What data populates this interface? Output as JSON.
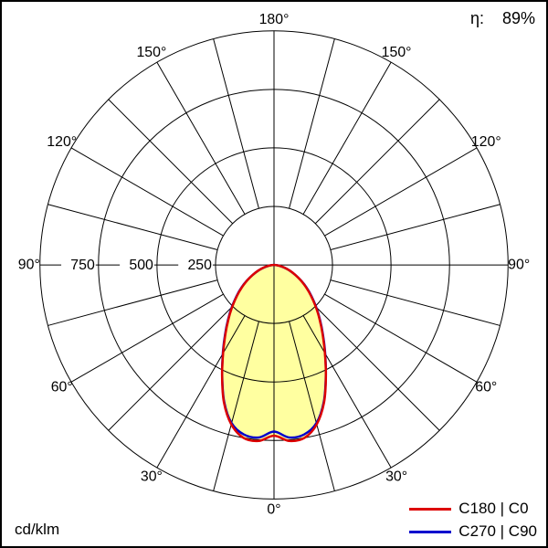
{
  "header": {
    "efficiency_label": "η:",
    "efficiency_value": "89%"
  },
  "footer": {
    "unit_label": "cd/klm"
  },
  "legend": [
    {
      "label": "C180 | C0",
      "color": "#dd0000"
    },
    {
      "label": "C270 | C90",
      "color": "#0000cd"
    }
  ],
  "chart_data": {
    "type": "polar_intensity_diagram",
    "unit": "cd/klm",
    "efficiency_percent": 89,
    "radial_ticks": [
      250,
      500,
      750
    ],
    "radial_max": 1000,
    "angle_step_deg": 15,
    "angle_labels_deg": [
      0,
      30,
      60,
      90,
      120,
      150,
      180
    ],
    "fill_color": "#ffffa0",
    "gamma_deg": [
      0,
      5,
      10,
      15,
      20,
      25,
      30,
      35,
      40,
      45,
      50,
      55,
      60,
      65,
      70,
      75,
      80,
      85,
      90
    ],
    "series": [
      {
        "name": "C180 | C0",
        "color": "#dd0000",
        "values": [
          730,
          755,
          750,
          705,
          625,
          525,
          435,
          362,
          303,
          252,
          207,
          168,
          132,
          100,
          73,
          48,
          28,
          12,
          2
        ]
      },
      {
        "name": "C270 | C90",
        "color": "#0000cd",
        "values": [
          712,
          740,
          736,
          700,
          622,
          524,
          437,
          365,
          306,
          255,
          210,
          171,
          134,
          100,
          72,
          46,
          26,
          10,
          2
        ]
      }
    ]
  }
}
